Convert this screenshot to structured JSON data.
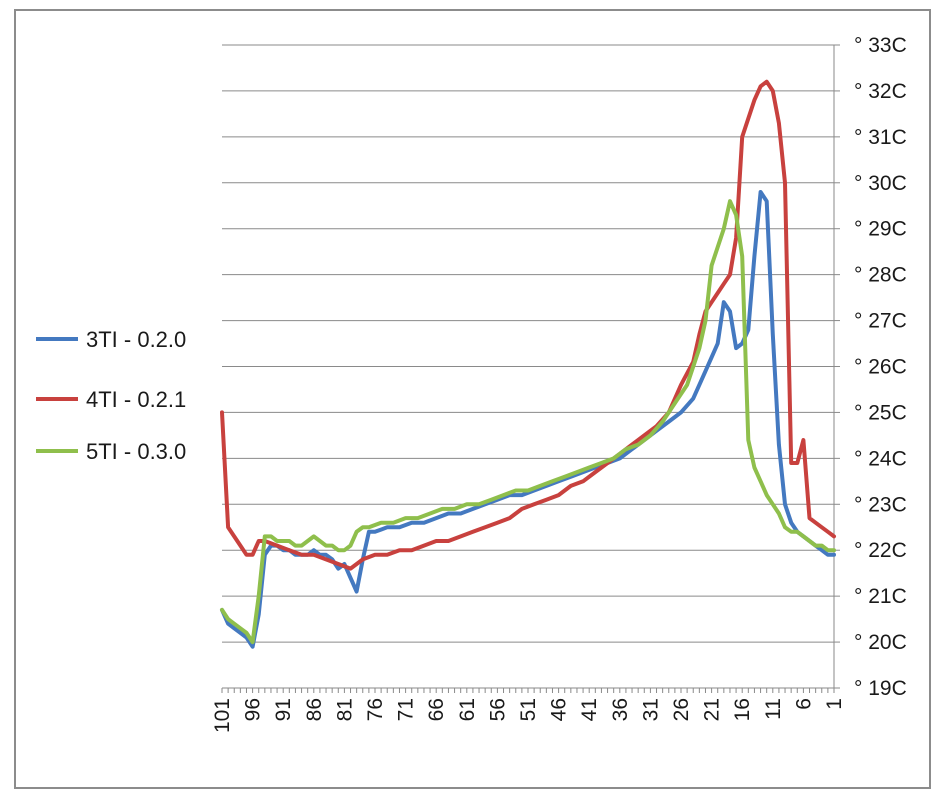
{
  "chart_data": {
    "type": "line",
    "x_axis": {
      "reversed": true,
      "range": [
        101,
        1
      ],
      "tick_labels": [
        "101",
        "96",
        "91",
        "86",
        "81",
        "76",
        "71",
        "66",
        "61",
        "56",
        "51",
        "46",
        "41",
        "36",
        "31",
        "26",
        "21",
        "16",
        "11",
        "6",
        "1"
      ]
    },
    "y_axis": {
      "position": "right",
      "range": [
        190,
        330
      ],
      "tick_labels": [
        "° 19C",
        "° 20C",
        "° 21C",
        "° 22C",
        "° 23C",
        "° 24C",
        "° 25C",
        "° 26C",
        "° 27C",
        "° 28C",
        "° 29C",
        "° 30C",
        "° 31C",
        "° 32C",
        "° 33C"
      ]
    },
    "grid": "horizontal",
    "legend": {
      "placement": "left"
    },
    "series": [
      {
        "name": "3TI - 0.2.0",
        "color": "#4479c0",
        "points": [
          [
            101,
            207
          ],
          [
            100,
            204
          ],
          [
            99,
            203
          ],
          [
            98,
            202
          ],
          [
            97,
            201
          ],
          [
            96,
            199
          ],
          [
            95,
            206
          ],
          [
            94,
            219
          ],
          [
            93,
            221
          ],
          [
            92,
            221
          ],
          [
            91,
            220
          ],
          [
            90,
            220
          ],
          [
            89,
            219
          ],
          [
            88,
            219
          ],
          [
            87,
            219
          ],
          [
            86,
            220
          ],
          [
            85,
            219
          ],
          [
            84,
            219
          ],
          [
            83,
            218
          ],
          [
            82,
            216
          ],
          [
            81,
            217
          ],
          [
            80,
            214
          ],
          [
            79,
            211
          ],
          [
            78,
            218
          ],
          [
            77,
            224
          ],
          [
            76,
            224
          ],
          [
            74,
            225
          ],
          [
            72,
            225
          ],
          [
            70,
            226
          ],
          [
            68,
            226
          ],
          [
            66,
            227
          ],
          [
            64,
            228
          ],
          [
            62,
            228
          ],
          [
            60,
            229
          ],
          [
            58,
            230
          ],
          [
            56,
            231
          ],
          [
            54,
            232
          ],
          [
            52,
            232
          ],
          [
            50,
            233
          ],
          [
            48,
            234
          ],
          [
            46,
            235
          ],
          [
            44,
            236
          ],
          [
            42,
            237
          ],
          [
            40,
            238
          ],
          [
            38,
            239
          ],
          [
            36,
            240
          ],
          [
            34,
            242
          ],
          [
            32,
            244
          ],
          [
            30,
            246
          ],
          [
            28,
            248
          ],
          [
            26,
            250
          ],
          [
            24,
            253
          ],
          [
            22,
            259
          ],
          [
            21,
            262
          ],
          [
            20,
            265
          ],
          [
            19,
            274
          ],
          [
            18,
            272
          ],
          [
            17,
            264
          ],
          [
            16,
            265
          ],
          [
            15,
            268
          ],
          [
            14,
            284
          ],
          [
            13,
            298
          ],
          [
            12,
            296
          ],
          [
            11,
            267
          ],
          [
            10,
            243
          ],
          [
            9,
            230
          ],
          [
            8,
            226
          ],
          [
            7,
            224
          ],
          [
            6,
            223
          ],
          [
            5,
            222
          ],
          [
            4,
            221
          ],
          [
            3,
            220
          ],
          [
            2,
            219
          ],
          [
            1,
            219
          ]
        ]
      },
      {
        "name": "4TI - 0.2.1",
        "color": "#c8413e",
        "points": [
          [
            101,
            250
          ],
          [
            100,
            225
          ],
          [
            99,
            223
          ],
          [
            98,
            221
          ],
          [
            97,
            219
          ],
          [
            96,
            219
          ],
          [
            95,
            222
          ],
          [
            94,
            222
          ],
          [
            92,
            221
          ],
          [
            90,
            220
          ],
          [
            88,
            219
          ],
          [
            86,
            219
          ],
          [
            84,
            218
          ],
          [
            82,
            217
          ],
          [
            80,
            216
          ],
          [
            78,
            218
          ],
          [
            76,
            219
          ],
          [
            74,
            219
          ],
          [
            72,
            220
          ],
          [
            70,
            220
          ],
          [
            68,
            221
          ],
          [
            66,
            222
          ],
          [
            64,
            222
          ],
          [
            62,
            223
          ],
          [
            60,
            224
          ],
          [
            58,
            225
          ],
          [
            56,
            226
          ],
          [
            54,
            227
          ],
          [
            52,
            229
          ],
          [
            50,
            230
          ],
          [
            48,
            231
          ],
          [
            46,
            232
          ],
          [
            44,
            234
          ],
          [
            42,
            235
          ],
          [
            40,
            237
          ],
          [
            38,
            239
          ],
          [
            36,
            241
          ],
          [
            34,
            243
          ],
          [
            32,
            245
          ],
          [
            30,
            247
          ],
          [
            28,
            250
          ],
          [
            26,
            256
          ],
          [
            24,
            261
          ],
          [
            23,
            267
          ],
          [
            22,
            272
          ],
          [
            21,
            274
          ],
          [
            20,
            276
          ],
          [
            19,
            278
          ],
          [
            18,
            280
          ],
          [
            17,
            288
          ],
          [
            16,
            310
          ],
          [
            15,
            314
          ],
          [
            14,
            318
          ],
          [
            13,
            321
          ],
          [
            12,
            322
          ],
          [
            11,
            320
          ],
          [
            10,
            313
          ],
          [
            9,
            300
          ],
          [
            8,
            239
          ],
          [
            7,
            239
          ],
          [
            6,
            244
          ],
          [
            5,
            227
          ],
          [
            4,
            226
          ],
          [
            3,
            225
          ],
          [
            2,
            224
          ],
          [
            1,
            223
          ]
        ]
      },
      {
        "name": "5TI - 0.3.0",
        "color": "#8fbf4c",
        "points": [
          [
            101,
            207
          ],
          [
            100,
            205
          ],
          [
            99,
            204
          ],
          [
            98,
            203
          ],
          [
            97,
            202
          ],
          [
            96,
            200
          ],
          [
            95,
            210
          ],
          [
            94,
            223
          ],
          [
            93,
            223
          ],
          [
            92,
            222
          ],
          [
            91,
            222
          ],
          [
            90,
            222
          ],
          [
            89,
            221
          ],
          [
            88,
            221
          ],
          [
            87,
            222
          ],
          [
            86,
            223
          ],
          [
            85,
            222
          ],
          [
            84,
            221
          ],
          [
            83,
            221
          ],
          [
            82,
            220
          ],
          [
            81,
            220
          ],
          [
            80,
            221
          ],
          [
            79,
            224
          ],
          [
            78,
            225
          ],
          [
            77,
            225
          ],
          [
            75,
            226
          ],
          [
            73,
            226
          ],
          [
            71,
            227
          ],
          [
            69,
            227
          ],
          [
            67,
            228
          ],
          [
            65,
            229
          ],
          [
            63,
            229
          ],
          [
            61,
            230
          ],
          [
            59,
            230
          ],
          [
            57,
            231
          ],
          [
            55,
            232
          ],
          [
            53,
            233
          ],
          [
            51,
            233
          ],
          [
            49,
            234
          ],
          [
            47,
            235
          ],
          [
            45,
            236
          ],
          [
            43,
            237
          ],
          [
            41,
            238
          ],
          [
            39,
            239
          ],
          [
            37,
            240
          ],
          [
            35,
            242
          ],
          [
            33,
            243
          ],
          [
            31,
            245
          ],
          [
            29,
            248
          ],
          [
            27,
            252
          ],
          [
            25,
            256
          ],
          [
            23,
            264
          ],
          [
            22,
            270
          ],
          [
            21,
            282
          ],
          [
            20,
            286
          ],
          [
            19,
            290
          ],
          [
            18,
            296
          ],
          [
            17,
            293
          ],
          [
            16,
            284
          ],
          [
            15,
            244
          ],
          [
            14,
            238
          ],
          [
            13,
            235
          ],
          [
            12,
            232
          ],
          [
            11,
            230
          ],
          [
            10,
            228
          ],
          [
            9,
            225
          ],
          [
            8,
            224
          ],
          [
            7,
            224
          ],
          [
            6,
            223
          ],
          [
            5,
            222
          ],
          [
            4,
            221
          ],
          [
            3,
            221
          ],
          [
            2,
            220
          ],
          [
            1,
            220
          ]
        ]
      }
    ]
  }
}
